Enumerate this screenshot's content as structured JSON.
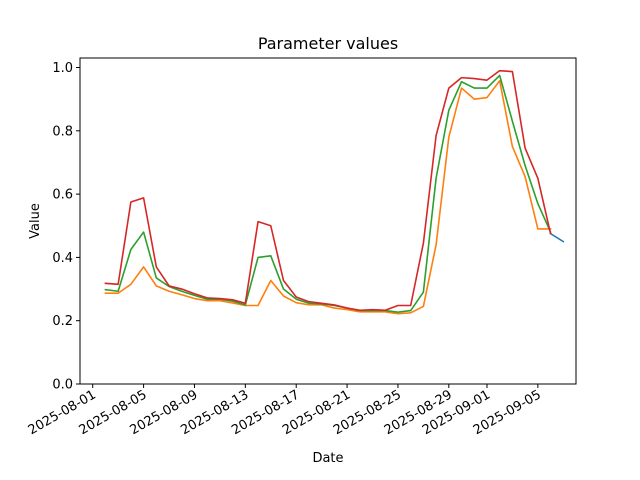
{
  "chart_data": {
    "type": "line",
    "title": "Parameter values",
    "xlabel": "Date",
    "ylabel": "Value",
    "x_ticks": [
      "2025-08-01",
      "2025-08-05",
      "2025-08-09",
      "2025-08-13",
      "2025-08-17",
      "2025-08-21",
      "2025-08-25",
      "2025-08-29",
      "2025-09-01",
      "2025-09-05"
    ],
    "y_ticks": [
      "0.0",
      "0.2",
      "0.4",
      "0.6",
      "0.8",
      "1.0"
    ],
    "xlim": [
      "2025-07-31",
      "2025-09-08"
    ],
    "ylim": [
      0,
      1.03
    ],
    "grid": false,
    "x": [
      "2025-08-02",
      "2025-08-03",
      "2025-08-04",
      "2025-08-05",
      "2025-08-06",
      "2025-08-07",
      "2025-08-08",
      "2025-08-09",
      "2025-08-10",
      "2025-08-11",
      "2025-08-12",
      "2025-08-13",
      "2025-08-14",
      "2025-08-15",
      "2025-08-16",
      "2025-08-17",
      "2025-08-18",
      "2025-08-19",
      "2025-08-20",
      "2025-08-21",
      "2025-08-22",
      "2025-08-23",
      "2025-08-24",
      "2025-08-25",
      "2025-08-26",
      "2025-08-27",
      "2025-08-28",
      "2025-08-29",
      "2025-08-30",
      "2025-08-31",
      "2025-09-01",
      "2025-09-02",
      "2025-09-03",
      "2025-09-04",
      "2025-09-05",
      "2025-09-06",
      "2025-09-07"
    ],
    "series": [
      {
        "color": "#1f77b4",
        "values": [
          null,
          null,
          null,
          null,
          null,
          null,
          null,
          null,
          null,
          null,
          null,
          null,
          null,
          null,
          null,
          null,
          null,
          null,
          null,
          null,
          null,
          null,
          null,
          null,
          null,
          null,
          null,
          null,
          null,
          null,
          null,
          null,
          null,
          null,
          null,
          0.475,
          0.45
        ]
      },
      {
        "color": "#ff7f0e",
        "values": [
          0.287,
          0.287,
          0.315,
          0.37,
          0.31,
          0.293,
          0.282,
          0.27,
          0.263,
          0.263,
          0.256,
          0.248,
          0.248,
          0.327,
          0.278,
          0.257,
          0.25,
          0.25,
          0.24,
          0.235,
          0.228,
          0.228,
          0.228,
          0.222,
          0.225,
          0.245,
          0.44,
          0.78,
          0.935,
          0.9,
          0.905,
          0.958,
          0.75,
          0.655,
          0.49,
          0.49,
          null
        ]
      },
      {
        "color": "#2ca02c",
        "values": [
          0.298,
          0.293,
          0.425,
          0.48,
          0.335,
          0.308,
          0.293,
          0.28,
          0.268,
          0.268,
          0.262,
          0.25,
          0.4,
          0.405,
          0.3,
          0.268,
          0.255,
          0.253,
          0.248,
          0.24,
          0.232,
          0.232,
          0.232,
          0.227,
          0.232,
          0.29,
          0.65,
          0.865,
          0.955,
          0.935,
          0.935,
          0.975,
          0.83,
          0.69,
          0.57,
          0.48,
          null
        ]
      },
      {
        "color": "#d62728",
        "values": [
          0.318,
          0.315,
          0.575,
          0.588,
          0.37,
          0.31,
          0.3,
          0.285,
          0.272,
          0.27,
          0.266,
          0.255,
          0.513,
          0.5,
          0.327,
          0.275,
          0.26,
          0.255,
          0.25,
          0.24,
          0.233,
          0.235,
          0.233,
          0.248,
          0.248,
          0.445,
          0.785,
          0.935,
          0.968,
          0.965,
          0.96,
          0.99,
          0.987,
          0.745,
          0.65,
          0.475,
          null
        ]
      }
    ]
  }
}
